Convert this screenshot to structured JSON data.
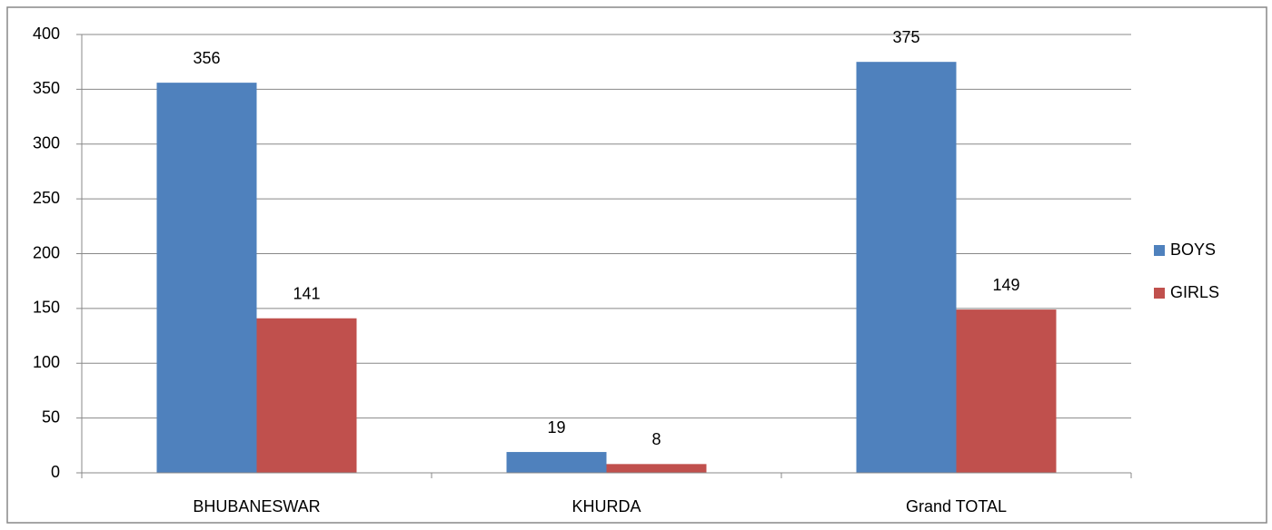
{
  "chart_data": {
    "type": "bar",
    "categories": [
      "BHUBANESWAR",
      "KHURDA",
      "Grand TOTAL"
    ],
    "series": [
      {
        "name": "BOYS",
        "color": "#4f81bd",
        "values": [
          356,
          19,
          375
        ]
      },
      {
        "name": "GIRLS",
        "color": "#c0504d",
        "values": [
          141,
          8,
          149
        ]
      }
    ],
    "ylim": [
      0,
      400
    ],
    "yticks": [
      0,
      50,
      100,
      150,
      200,
      250,
      300,
      350,
      400
    ],
    "grid": true,
    "legend": "right"
  }
}
